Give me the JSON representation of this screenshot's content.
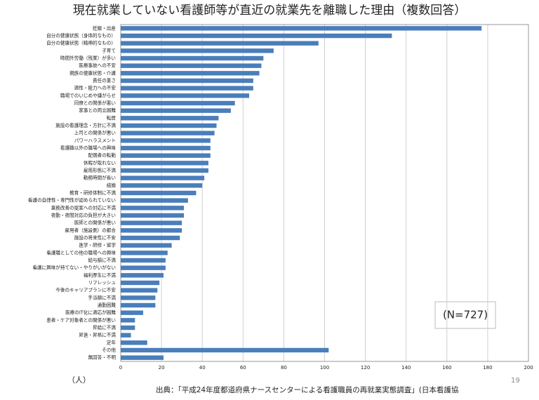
{
  "chart_data": {
    "type": "bar",
    "horizontal": true,
    "title": "現在就業していない看護師等が直近の就業先を離職した理由（複数回答）",
    "categories": [
      "妊娠・出産",
      "自分の健康状態（身体的なもの）",
      "自分の健康状態（精神的なもの）",
      "子育て",
      "時間外労働（残業）が多い",
      "医療事故への不安",
      "親族の健康状態・介護",
      "責任の重さ",
      "適性・能力への不安",
      "職場でのいじめや嫌がらせ",
      "同僚との関係が悪い",
      "家事との両立困難",
      "転居",
      "施設の看護理念・方針に不満",
      "上司との関係が悪い",
      "パワーハラスメント",
      "看護職以外の職場への興味",
      "配偶者の転勤",
      "休暇が取れない",
      "雇用形態に不満",
      "勤務時間が長い",
      "結婚",
      "教育・研修体制に不満",
      "看護の自律性・専門性が認められていない",
      "業務改善の提案への対応に不満",
      "夜勤・夜間対応の負担が大きい",
      "医師との関係が悪い",
      "雇用者（施設側）の都合",
      "施設の将来性に不安",
      "進学・研修・留学",
      "看護職としての他の職場への興味",
      "給与額に不満",
      "看護に興味が持てない・やりがいがない",
      "福利厚生に不満",
      "リフレッシュ",
      "今後のキャリアプランに不安",
      "手当額に不満",
      "通勤困難",
      "医療のIT化に適応が困難",
      "患者・ケア対象者との関係が悪い",
      "昇給に不満",
      "昇進・昇格に不満",
      "定年",
      "その他",
      "無回答・不明"
    ],
    "values": [
      177,
      133,
      97,
      75,
      70,
      69,
      68,
      65,
      65,
      63,
      56,
      54,
      48,
      47,
      46,
      44,
      44,
      44,
      43,
      43,
      41,
      40,
      37,
      33,
      31,
      31,
      30,
      30,
      29,
      25,
      23,
      22,
      22,
      21,
      19,
      18,
      17,
      17,
      11,
      7,
      7,
      5,
      13,
      102,
      21
    ],
    "color": "#4a7ebb",
    "xlim": [
      0,
      200
    ],
    "xticks": [
      0,
      20,
      40,
      60,
      80,
      100,
      120,
      140,
      160,
      180,
      200
    ],
    "grid": true,
    "annotation": "(N=727)",
    "unit_label": "（人）",
    "source": "出典：「平成24年度都道府県ナースセンターによる看護職員の再就業実態調査」(日本看護協",
    "page_number": "19"
  }
}
